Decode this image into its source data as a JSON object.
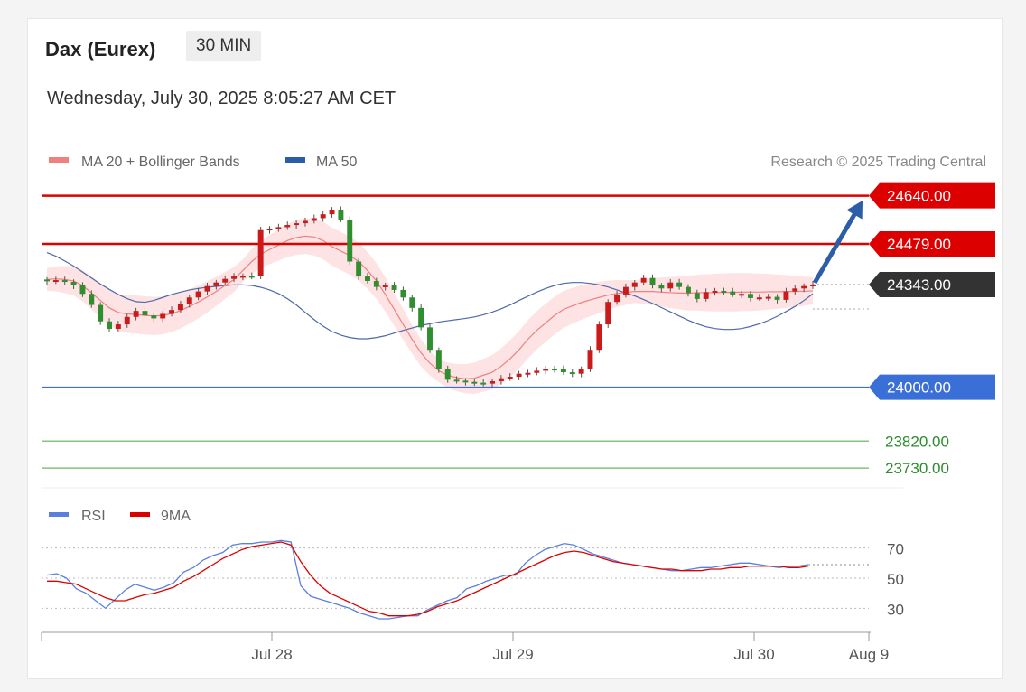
{
  "header": {
    "title": "Dax (Eurex)",
    "timeframe": "30 MIN",
    "datetime": "Wednesday, July 30, 2025 8:05:27 AM CET"
  },
  "legend": {
    "ma20_label": "MA 20 + Bollinger Bands",
    "ma50_label": "MA 50",
    "copyright": "Research © 2025 Trading Central",
    "rsi_label": "RSI",
    "rsi_ma_label": "9MA"
  },
  "colors": {
    "resistance": "#dd0000",
    "support": "#3a6fd8",
    "target_low": "#7cc87c",
    "current": "#333333",
    "arrow": "#2b5ea6",
    "ma20": "#f07f7f",
    "ma50": "#4e69a8",
    "bands": "#fde0e0",
    "candle_up": "#cc1a1a",
    "candle_down": "#2f8f2f",
    "rsi": "#5b7fde",
    "rsi_ma": "#dd0000"
  },
  "chart_data": [
    {
      "type": "line",
      "name": "price",
      "ylim": [
        23700,
        24660
      ],
      "xlim": [
        "Jul 27",
        "Aug 9"
      ],
      "x_ticks": [
        "Jul 28",
        "Jul 29",
        "Jul 30",
        "Aug 9"
      ],
      "levels": [
        {
          "label": "24640.00",
          "value": 24640,
          "kind": "resistance"
        },
        {
          "label": "24479.00",
          "value": 24479,
          "kind": "resistance"
        },
        {
          "label": "24343.00",
          "value": 24343,
          "kind": "current"
        },
        {
          "label": "24000.00",
          "value": 24000,
          "kind": "support"
        },
        {
          "label": "23820.00",
          "value": 23820,
          "kind": "target"
        },
        {
          "label": "23730.00",
          "value": 23730,
          "kind": "target"
        }
      ],
      "forecast_arrow": {
        "from": 24343,
        "to": 24640
      },
      "close": [
        24355,
        24358,
        24352,
        24340,
        24312,
        24275,
        24220,
        24195,
        24210,
        24235,
        24255,
        24240,
        24230,
        24245,
        24258,
        24278,
        24300,
        24320,
        24338,
        24350,
        24362,
        24370,
        24372,
        24371,
        24525,
        24530,
        24535,
        24542,
        24548,
        24556,
        24565,
        24578,
        24592,
        24560,
        24420,
        24370,
        24355,
        24335,
        24340,
        24325,
        24300,
        24265,
        24200,
        24125,
        24060,
        24025,
        24022,
        24018,
        24015,
        24012,
        24020,
        24030,
        24035,
        24045,
        24048,
        24055,
        24062,
        24060,
        24050,
        24045,
        24060,
        24125,
        24210,
        24285,
        24310,
        24335,
        24350,
        24365,
        24340,
        24330,
        24350,
        24335,
        24315,
        24295,
        24318,
        24322,
        24320,
        24310,
        24312,
        24298,
        24300,
        24302,
        24292,
        24320,
        24330,
        24338,
        24343
      ],
      "ma20": [
        24360,
        24362,
        24360,
        24355,
        24340,
        24315,
        24290,
        24265,
        24250,
        24245,
        24243,
        24240,
        24238,
        24240,
        24246,
        24256,
        24270,
        24285,
        24302,
        24320,
        24340,
        24360,
        24390,
        24420,
        24445,
        24460,
        24475,
        24490,
        24500,
        24505,
        24502,
        24490,
        24470,
        24455,
        24440,
        24420,
        24390,
        24355,
        24310,
        24260,
        24210,
        24160,
        24115,
        24080,
        24055,
        24040,
        24032,
        24028,
        24030,
        24040,
        24050,
        24070,
        24095,
        24125,
        24160,
        24190,
        24215,
        24240,
        24260,
        24272,
        24283,
        24292,
        24300,
        24308,
        24313,
        24317,
        24320,
        24320,
        24320,
        24318,
        24316,
        24315,
        24314,
        24316,
        24316,
        24316,
        24317,
        24317,
        24318,
        24318,
        24318,
        24319,
        24319,
        24320,
        24320,
        24321,
        24322
      ],
      "ma50": [
        24450,
        24438,
        24422,
        24405,
        24385,
        24365,
        24345,
        24327,
        24310,
        24296,
        24286,
        24284,
        24290,
        24300,
        24310,
        24318,
        24325,
        24330,
        24334,
        24337,
        24340,
        24342,
        24342,
        24340,
        24334,
        24325,
        24313,
        24296,
        24275,
        24250,
        24226,
        24204,
        24186,
        24174,
        24166,
        24162,
        24162,
        24166,
        24172,
        24181,
        24190,
        24198,
        24206,
        24212,
        24218,
        24222,
        24226,
        24230,
        24235,
        24242,
        24251,
        24262,
        24275,
        24290,
        24304,
        24318,
        24330,
        24340,
        24347,
        24350,
        24350,
        24347,
        24342,
        24335,
        24325,
        24315,
        24305,
        24293,
        24280,
        24266,
        24252,
        24238,
        24224,
        24212,
        24202,
        24196,
        24193,
        24193,
        24196,
        24203,
        24212,
        24223,
        24237,
        24253,
        24270,
        24290,
        24312
      ]
    },
    {
      "type": "line",
      "name": "rsi",
      "ylim": [
        20,
        80
      ],
      "y_ticks": [
        "70",
        "50",
        "30"
      ],
      "series": [
        {
          "name": "RSI",
          "values": [
            52,
            53,
            50,
            43,
            40,
            35,
            30,
            36,
            42,
            46,
            44,
            42,
            44,
            47,
            54,
            57,
            62,
            65,
            67,
            72,
            73,
            73,
            74,
            74,
            75,
            74,
            45,
            38,
            36,
            34,
            32,
            30,
            27,
            25,
            23,
            23,
            24,
            25,
            25,
            29,
            32,
            35,
            37,
            43,
            45,
            48,
            50,
            52,
            52,
            60,
            65,
            69,
            71,
            73,
            72,
            69,
            66,
            64,
            62,
            60,
            59,
            58,
            57,
            56,
            55,
            55,
            56,
            57,
            57,
            58,
            59,
            60,
            60,
            59,
            58,
            57,
            58,
            58,
            59
          ]
        },
        {
          "name": "9MA",
          "values": [
            48,
            48,
            47,
            46,
            43,
            40,
            37,
            35,
            35,
            37,
            39,
            40,
            42,
            44,
            48,
            51,
            55,
            59,
            63,
            66,
            69,
            71,
            72,
            73,
            74,
            72,
            61,
            52,
            45,
            40,
            37,
            34,
            31,
            28,
            27,
            25,
            25,
            25,
            26,
            28,
            31,
            33,
            35,
            38,
            41,
            44,
            47,
            50,
            53,
            56,
            59,
            62,
            65,
            67,
            68,
            67,
            65,
            63,
            61,
            60,
            59,
            58,
            57,
            56,
            56,
            55,
            55,
            55,
            56,
            56,
            57,
            57,
            58,
            58,
            58,
            58,
            57,
            57,
            58
          ]
        }
      ]
    }
  ]
}
